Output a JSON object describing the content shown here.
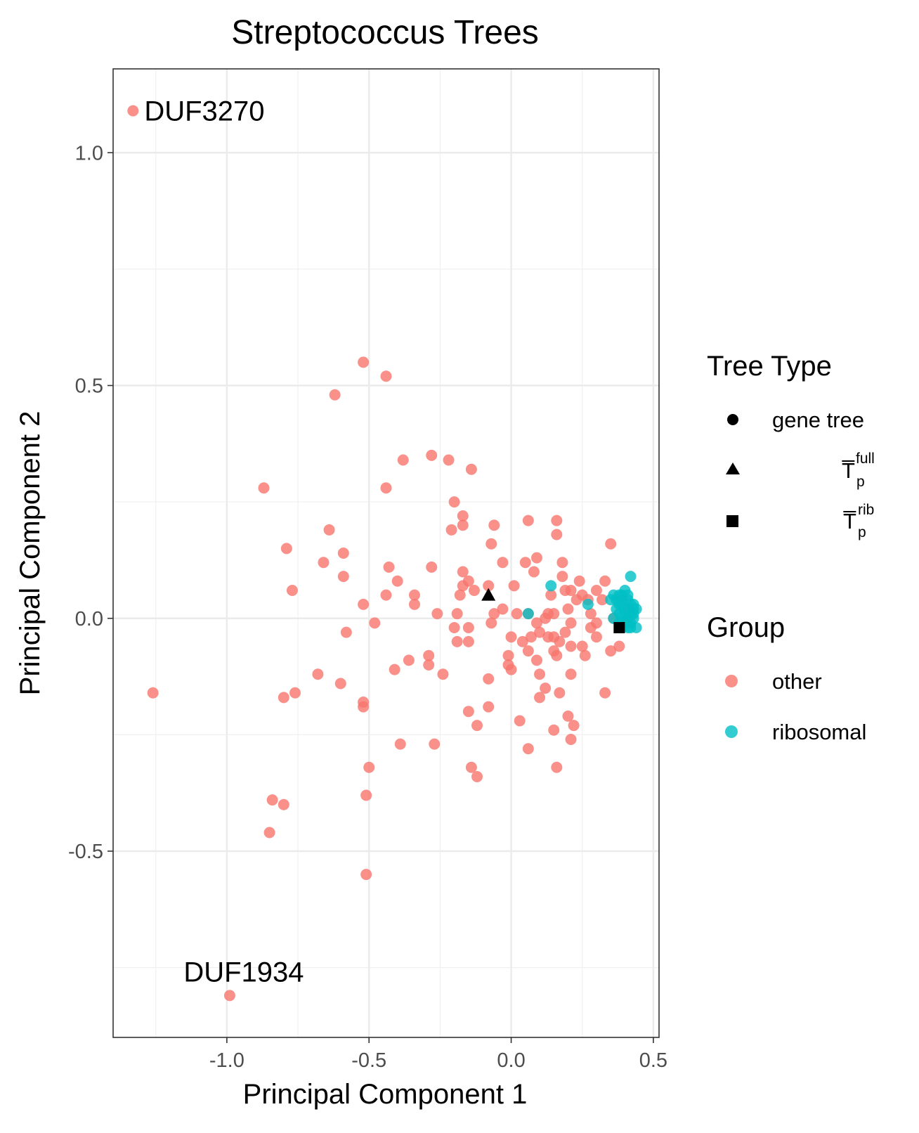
{
  "chart_data": {
    "type": "scatter",
    "title": "Streptococcus Trees",
    "xlabel": "Principal Component 1",
    "ylabel": "Principal Component 2",
    "xlim": [
      -1.4,
      0.52
    ],
    "ylim": [
      -0.9,
      1.18
    ],
    "x_ticks": [
      -1.0,
      -0.5,
      0.0,
      0.5
    ],
    "x_tick_labels": [
      "-1.0",
      "-0.5",
      "0.0",
      "0.5"
    ],
    "y_ticks": [
      -0.5,
      0.0,
      0.5,
      1.0
    ],
    "y_tick_labels": [
      "-0.5",
      "0.0",
      "0.5",
      "1.0"
    ],
    "grid": true,
    "legend_placement": "right",
    "colors": {
      "other": "#F8766D",
      "ribosomal": "#00BFC4",
      "reference": "#000000"
    },
    "annotations": [
      {
        "text": "DUF3270",
        "x": -1.33,
        "y": 1.09
      },
      {
        "text": "DUF1934",
        "x": -0.99,
        "y": -0.81
      }
    ],
    "legend_tree_type": {
      "title": "Tree Type",
      "items": [
        {
          "shape": "circle",
          "label": "gene tree"
        },
        {
          "shape": "triangle",
          "label": "T̅",
          "sup": "full",
          "sub": "p"
        },
        {
          "shape": "square",
          "label": "T̅",
          "sup": "rib",
          "sub": "p"
        }
      ]
    },
    "legend_group": {
      "title": "Group",
      "items": [
        {
          "label": "other",
          "color": "#F8766D"
        },
        {
          "label": "ribosomal",
          "color": "#00BFC4"
        }
      ]
    },
    "reference_points": [
      {
        "shape": "triangle",
        "x": -0.08,
        "y": 0.05
      },
      {
        "shape": "square",
        "x": 0.38,
        "y": -0.02
      }
    ],
    "series": [
      {
        "name": "other",
        "points": [
          [
            -1.33,
            1.09
          ],
          [
            -0.52,
            0.55
          ],
          [
            -0.44,
            0.52
          ],
          [
            -0.62,
            0.48
          ],
          [
            -0.87,
            0.28
          ],
          [
            -0.28,
            0.35
          ],
          [
            -0.22,
            0.34
          ],
          [
            -0.38,
            0.34
          ],
          [
            -0.14,
            0.32
          ],
          [
            -0.44,
            0.28
          ],
          [
            -0.2,
            0.25
          ],
          [
            -0.17,
            0.22
          ],
          [
            -0.64,
            0.19
          ],
          [
            -0.17,
            0.2
          ],
          [
            -0.21,
            0.19
          ],
          [
            -0.06,
            0.2
          ],
          [
            0.06,
            0.21
          ],
          [
            0.16,
            0.21
          ],
          [
            -0.07,
            0.16
          ],
          [
            0.16,
            0.18
          ],
          [
            -0.79,
            0.15
          ],
          [
            -0.59,
            0.14
          ],
          [
            -0.66,
            0.12
          ],
          [
            -0.43,
            0.11
          ],
          [
            -0.28,
            0.11
          ],
          [
            -0.17,
            0.1
          ],
          [
            -0.03,
            0.12
          ],
          [
            0.05,
            0.12
          ],
          [
            0.09,
            0.13
          ],
          [
            0.18,
            0.12
          ],
          [
            0.35,
            0.16
          ],
          [
            -0.59,
            0.09
          ],
          [
            -0.4,
            0.08
          ],
          [
            -0.15,
            0.08
          ],
          [
            -0.08,
            0.07
          ],
          [
            0.01,
            0.07
          ],
          [
            0.08,
            0.1
          ],
          [
            0.18,
            0.09
          ],
          [
            0.21,
            0.06
          ],
          [
            0.24,
            0.08
          ],
          [
            -0.77,
            0.06
          ],
          [
            -0.44,
            0.05
          ],
          [
            -0.34,
            0.05
          ],
          [
            -0.17,
            0.07
          ],
          [
            -0.13,
            0.06
          ],
          [
            -0.18,
            0.05
          ],
          [
            0.14,
            0.05
          ],
          [
            0.19,
            0.06
          ],
          [
            0.25,
            0.05
          ],
          [
            0.3,
            0.06
          ],
          [
            0.33,
            0.08
          ],
          [
            -0.34,
            0.03
          ],
          [
            -0.52,
            0.03
          ],
          [
            -0.03,
            0.02
          ],
          [
            0.02,
            0.01
          ],
          [
            0.06,
            0.01
          ],
          [
            0.13,
            0.01
          ],
          [
            0.15,
            0.01
          ],
          [
            0.2,
            0.02
          ],
          [
            0.23,
            0.04
          ],
          [
            0.27,
            0.04
          ],
          [
            0.32,
            0.04
          ],
          [
            -0.26,
            0.01
          ],
          [
            -0.19,
            0.01
          ],
          [
            -0.06,
            0.01
          ],
          [
            0.09,
            -0.01
          ],
          [
            0.12,
            0.0
          ],
          [
            0.21,
            -0.01
          ],
          [
            0.28,
            0.01
          ],
          [
            0.3,
            -0.01
          ],
          [
            0.39,
            0.04
          ],
          [
            0.41,
            0.02
          ],
          [
            -0.48,
            -0.01
          ],
          [
            -0.58,
            -0.03
          ],
          [
            -0.2,
            -0.02
          ],
          [
            -0.15,
            -0.02
          ],
          [
            -0.07,
            -0.01
          ],
          [
            0.0,
            -0.04
          ],
          [
            0.04,
            -0.05
          ],
          [
            0.07,
            -0.04
          ],
          [
            0.1,
            -0.03
          ],
          [
            0.15,
            -0.04
          ],
          [
            0.19,
            -0.03
          ],
          [
            0.28,
            -0.02
          ],
          [
            0.3,
            -0.04
          ],
          [
            0.35,
            -0.07
          ],
          [
            0.38,
            -0.06
          ],
          [
            -0.19,
            -0.05
          ],
          [
            -0.15,
            -0.05
          ],
          [
            0.06,
            -0.07
          ],
          [
            0.13,
            -0.04
          ],
          [
            0.15,
            -0.07
          ],
          [
            0.21,
            -0.06
          ],
          [
            0.25,
            -0.06
          ],
          [
            0.26,
            -0.08
          ],
          [
            -0.36,
            -0.09
          ],
          [
            -0.29,
            -0.08
          ],
          [
            -0.29,
            -0.1
          ],
          [
            -0.01,
            -0.08
          ],
          [
            -0.01,
            -0.1
          ],
          [
            0.09,
            -0.09
          ],
          [
            0.16,
            -0.08
          ],
          [
            0.17,
            -0.05
          ],
          [
            -0.68,
            -0.12
          ],
          [
            -0.41,
            -0.11
          ],
          [
            -0.24,
            -0.12
          ],
          [
            -0.08,
            -0.13
          ],
          [
            0.0,
            -0.11
          ],
          [
            0.1,
            -0.12
          ],
          [
            0.21,
            -0.12
          ],
          [
            -1.26,
            -0.16
          ],
          [
            -0.6,
            -0.14
          ],
          [
            -0.8,
            -0.17
          ],
          [
            -0.76,
            -0.16
          ],
          [
            0.12,
            -0.15
          ],
          [
            0.17,
            -0.16
          ],
          [
            0.33,
            -0.16
          ],
          [
            -0.52,
            -0.18
          ],
          [
            -0.52,
            -0.19
          ],
          [
            -0.08,
            -0.19
          ],
          [
            0.1,
            -0.17
          ],
          [
            -0.15,
            -0.2
          ],
          [
            -0.12,
            -0.23
          ],
          [
            0.03,
            -0.22
          ],
          [
            0.2,
            -0.21
          ],
          [
            0.22,
            -0.23
          ],
          [
            -0.39,
            -0.27
          ],
          [
            -0.27,
            -0.27
          ],
          [
            0.15,
            -0.24
          ],
          [
            0.21,
            -0.26
          ],
          [
            -0.5,
            -0.32
          ],
          [
            -0.14,
            -0.32
          ],
          [
            -0.12,
            -0.34
          ],
          [
            0.06,
            -0.28
          ],
          [
            0.16,
            -0.32
          ],
          [
            -0.51,
            -0.38
          ],
          [
            -0.84,
            -0.39
          ],
          [
            -0.8,
            -0.4
          ],
          [
            -0.85,
            -0.46
          ],
          [
            -0.51,
            -0.55
          ],
          [
            -0.99,
            -0.81
          ],
          [
            0.36,
            0.0
          ],
          [
            0.4,
            -0.01
          ],
          [
            0.42,
            0.01
          ]
        ]
      },
      {
        "name": "ribosomal",
        "points": [
          [
            0.14,
            0.07
          ],
          [
            0.06,
            0.01
          ],
          [
            0.27,
            0.03
          ],
          [
            0.42,
            0.09
          ],
          [
            0.36,
            0.05
          ],
          [
            0.37,
            0.04
          ],
          [
            0.38,
            0.03
          ],
          [
            0.39,
            0.05
          ],
          [
            0.4,
            0.06
          ],
          [
            0.41,
            0.04
          ],
          [
            0.42,
            0.03
          ],
          [
            0.43,
            0.02
          ],
          [
            0.44,
            0.02
          ],
          [
            0.37,
            0.02
          ],
          [
            0.38,
            0.01
          ],
          [
            0.39,
            0.0
          ],
          [
            0.4,
            0.01
          ],
          [
            0.41,
            0.0
          ],
          [
            0.42,
            -0.01
          ],
          [
            0.43,
            0.0
          ],
          [
            0.44,
            -0.02
          ],
          [
            0.38,
            -0.01
          ],
          [
            0.39,
            -0.02
          ],
          [
            0.4,
            -0.01
          ],
          [
            0.41,
            -0.02
          ],
          [
            0.42,
            0.01
          ],
          [
            0.36,
            0.0
          ],
          [
            0.38,
            0.05
          ],
          [
            0.43,
            0.03
          ],
          [
            0.41,
            0.05
          ],
          [
            0.39,
            0.03
          ],
          [
            0.4,
            0.02
          ],
          [
            0.35,
            0.04
          ],
          [
            0.38,
            -0.02
          ],
          [
            0.42,
            -0.02
          ],
          [
            0.43,
            0.01
          ]
        ]
      }
    ]
  }
}
